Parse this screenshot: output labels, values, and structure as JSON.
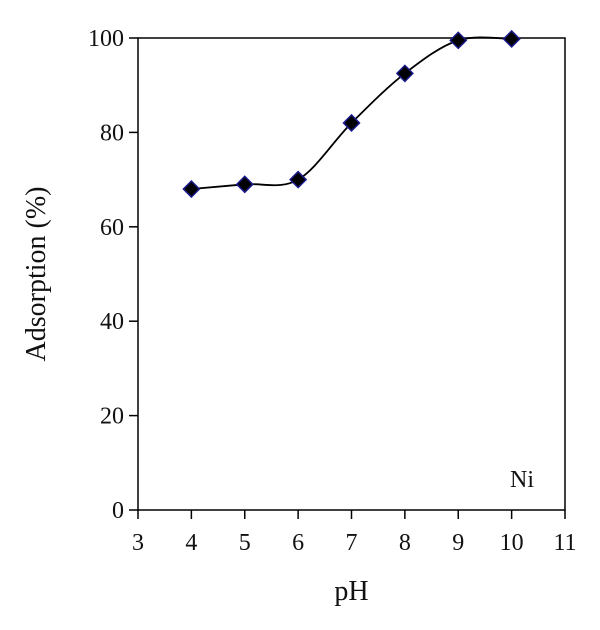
{
  "chart_data": {
    "type": "line",
    "title": "",
    "xlabel": "pH",
    "ylabel": "Adsorption (%)",
    "xlim": [
      3,
      11
    ],
    "ylim": [
      0,
      100
    ],
    "xticks": [
      3,
      4,
      5,
      6,
      7,
      8,
      9,
      10,
      11
    ],
    "yticks": [
      0,
      20,
      40,
      60,
      80,
      100
    ],
    "grid": false,
    "smooth": true,
    "marker": "diamond",
    "annotation": "Ni",
    "series": [
      {
        "x": [
          4,
          5,
          6,
          7,
          8,
          9,
          10
        ],
        "y": [
          68,
          69,
          70,
          82,
          92.5,
          99.5,
          99.8
        ],
        "color": "#000000",
        "marker_edge_color": "#1a1a8c"
      }
    ]
  }
}
